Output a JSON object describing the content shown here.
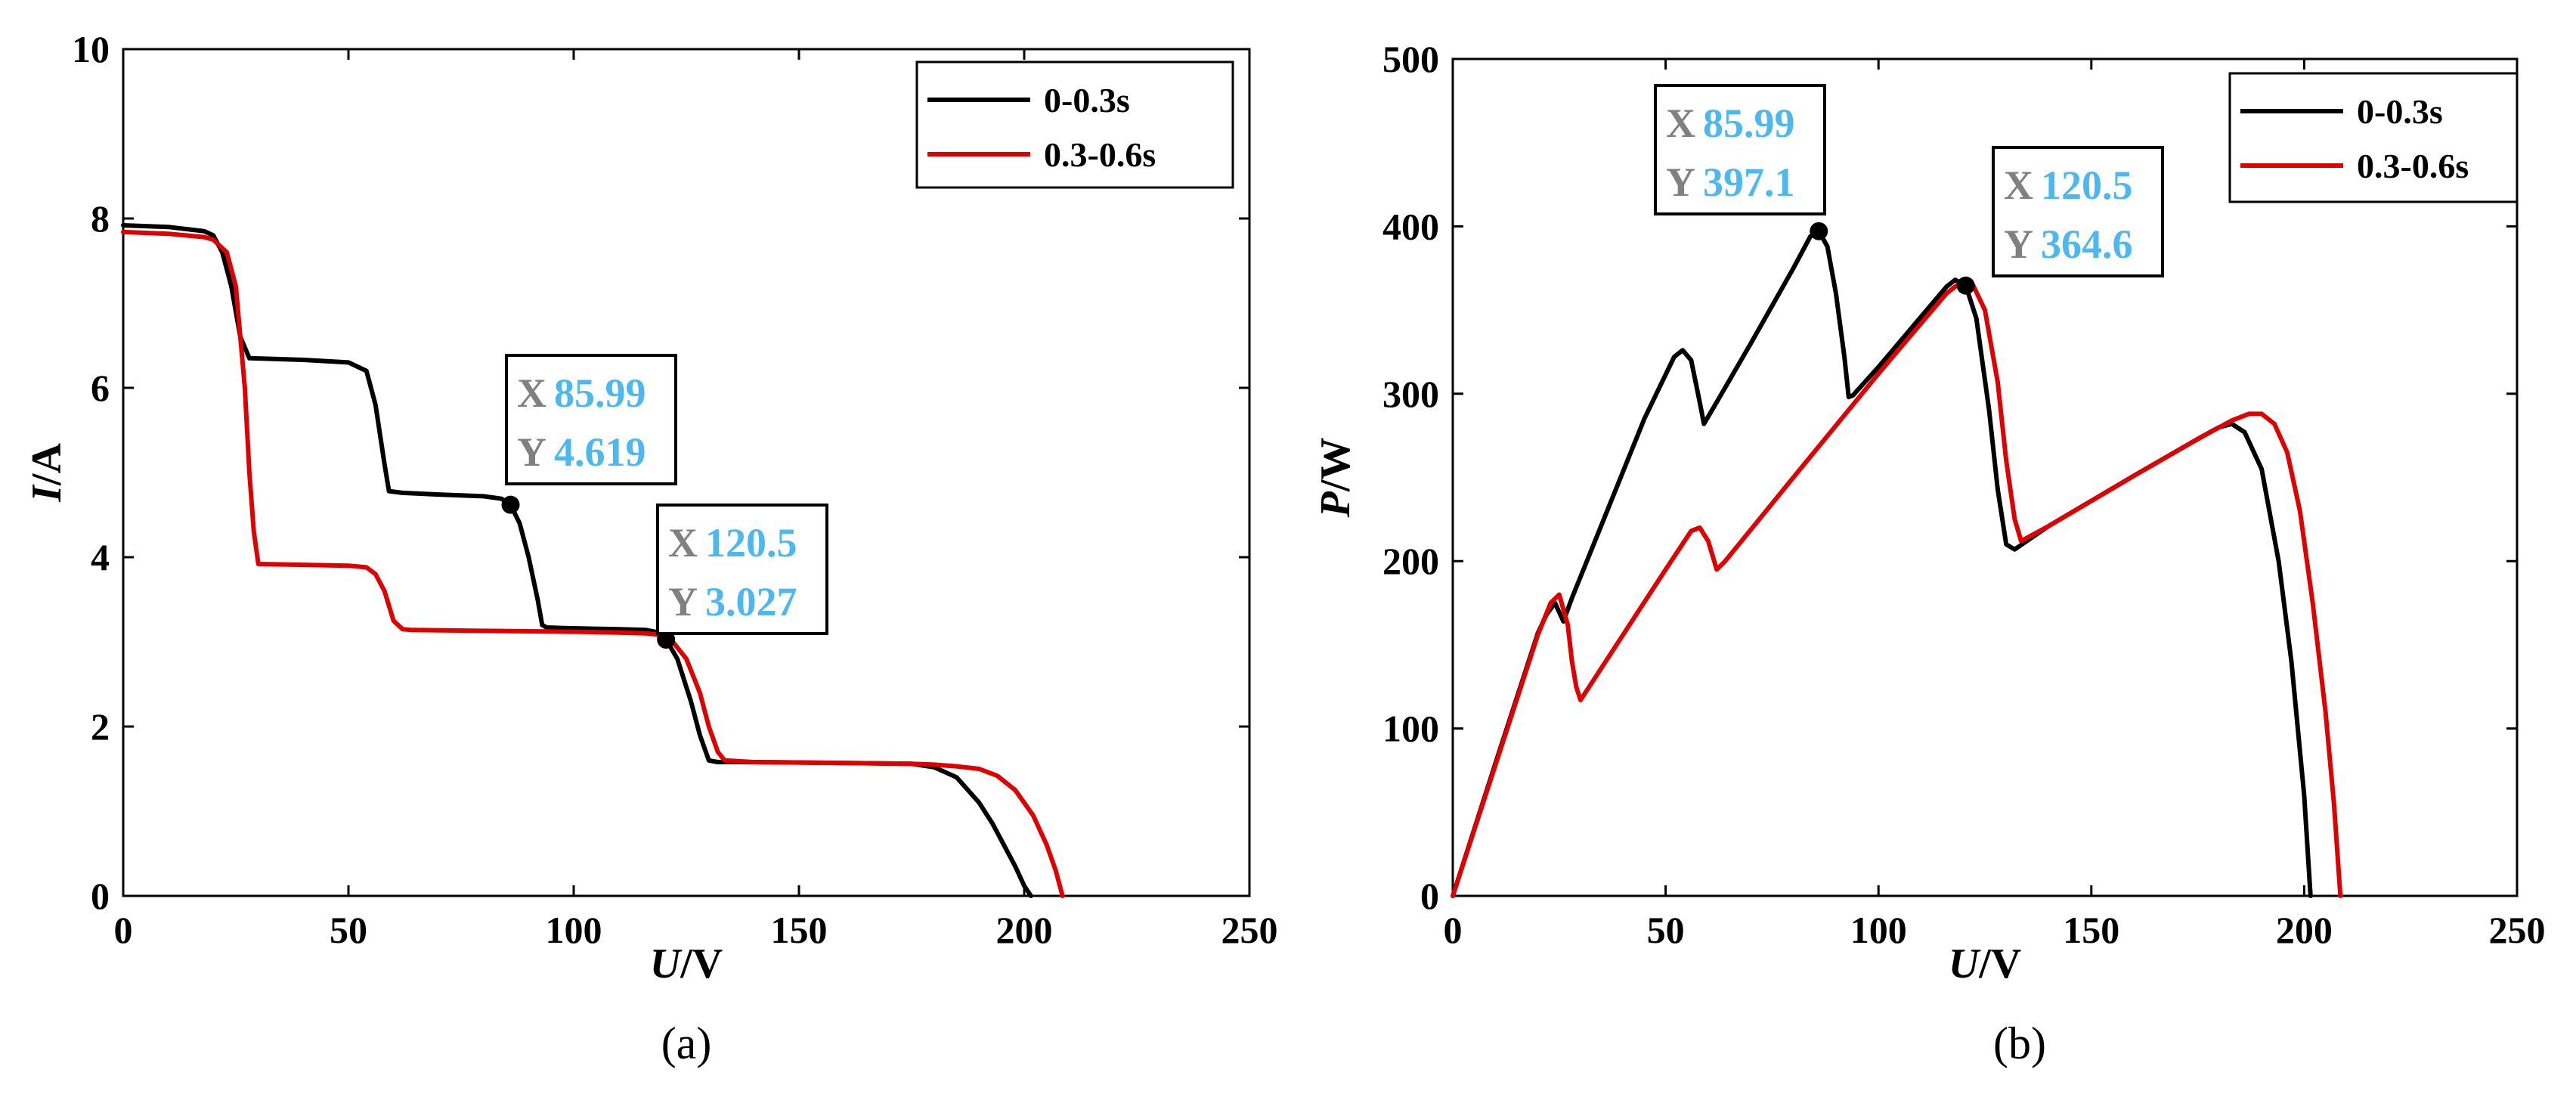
{
  "chart_data": [
    {
      "id": "a",
      "type": "line",
      "caption": "(a)",
      "xlabel": {
        "italic": "U",
        "rest": "/V"
      },
      "ylabel": {
        "italic": "I",
        "rest": "/A"
      },
      "xlim": [
        0,
        250
      ],
      "ylim": [
        0,
        10
      ],
      "xticks": [
        0,
        50,
        100,
        150,
        200,
        250
      ],
      "yticks": [
        0,
        2,
        4,
        6,
        8,
        10
      ],
      "legend_position": "top-right",
      "grid": false,
      "series": [
        {
          "name": "0-0.3s",
          "color": "#000000",
          "x": [
            0,
            10,
            18,
            20,
            22,
            24,
            26,
            28,
            40,
            50,
            54,
            56,
            58,
            59,
            62,
            70,
            80,
            84,
            85.99,
            88,
            90,
            92,
            93,
            94,
            100,
            110,
            116,
            118,
            120.5,
            123,
            126,
            128,
            130,
            132,
            140,
            160,
            175,
            180,
            185,
            190,
            193,
            196,
            198,
            200,
            201.5
          ],
          "y": [
            7.92,
            7.9,
            7.85,
            7.8,
            7.6,
            7.2,
            6.6,
            6.35,
            6.33,
            6.3,
            6.2,
            5.8,
            5.1,
            4.78,
            4.76,
            4.74,
            4.72,
            4.69,
            4.619,
            4.4,
            4.0,
            3.5,
            3.2,
            3.17,
            3.16,
            3.15,
            3.14,
            3.12,
            3.027,
            2.8,
            2.3,
            1.9,
            1.6,
            1.58,
            1.58,
            1.57,
            1.56,
            1.52,
            1.4,
            1.1,
            0.85,
            0.55,
            0.35,
            0.12,
            0.0
          ]
        },
        {
          "name": "0.3-0.6s",
          "color": "#e00000",
          "x": [
            0,
            10,
            18,
            20,
            23,
            25,
            27,
            28,
            29,
            30,
            40,
            50,
            54,
            56,
            58,
            60,
            62,
            64,
            80,
            100,
            110,
            116,
            118,
            120,
            122,
            125,
            128,
            130,
            132,
            133.5,
            140,
            160,
            175,
            180,
            185,
            190,
            194,
            198,
            202,
            205,
            207,
            208.5
          ],
          "y": [
            7.84,
            7.82,
            7.78,
            7.75,
            7.6,
            7.2,
            6.0,
            5.0,
            4.3,
            3.92,
            3.91,
            3.9,
            3.88,
            3.8,
            3.6,
            3.25,
            3.15,
            3.14,
            3.13,
            3.12,
            3.11,
            3.1,
            3.09,
            3.06,
            3.0,
            2.8,
            2.4,
            2.0,
            1.7,
            1.6,
            1.58,
            1.57,
            1.56,
            1.55,
            1.53,
            1.5,
            1.42,
            1.25,
            0.95,
            0.6,
            0.3,
            0.0
          ]
        }
      ],
      "annotations": [
        {
          "x": 85.99,
          "y": 4.619,
          "x_label": "X",
          "y_label": "Y",
          "x_text": "85.99",
          "y_text": "4.619"
        },
        {
          "x": 120.5,
          "y": 3.027,
          "x_label": "X",
          "y_label": "Y",
          "x_text": "120.5",
          "y_text": "3.027"
        }
      ]
    },
    {
      "id": "b",
      "type": "line",
      "caption": "(b)",
      "xlabel": {
        "italic": "U",
        "rest": "/V"
      },
      "ylabel": {
        "italic": "P",
        "rest": "/W"
      },
      "xlim": [
        0,
        250
      ],
      "ylim": [
        0,
        500
      ],
      "xticks": [
        0,
        50,
        100,
        150,
        200,
        250
      ],
      "yticks": [
        0,
        100,
        200,
        300,
        400,
        500
      ],
      "legend_position": "top-right",
      "grid": false,
      "series": [
        {
          "name": "0-0.3s",
          "color": "#000000",
          "x": [
            0,
            10,
            20,
            22,
            24,
            26,
            28,
            35,
            45,
            52,
            54,
            56,
            58,
            59,
            62,
            70,
            80,
            84,
            85.99,
            88,
            90,
            92,
            93,
            94,
            100,
            110,
            116,
            118,
            120.5,
            123,
            126,
            128,
            130,
            132,
            140,
            160,
            175,
            180,
            183,
            186,
            190,
            194,
            197,
            200,
            201.5
          ],
          "y": [
            0,
            79,
            157,
            168,
            175,
            164,
            178,
            222,
            285,
            322,
            326,
            320,
            295,
            282,
            295,
            330,
            375,
            394,
            397.1,
            388,
            360,
            322,
            298,
            299,
            316,
            346,
            364,
            368,
            364.6,
            345,
            290,
            243,
            210,
            207,
            221,
            251,
            273,
            280,
            282,
            277,
            255,
            200,
            140,
            60,
            0
          ]
        },
        {
          "name": "0.3-0.6s",
          "color": "#e00000",
          "x": [
            0,
            10,
            20,
            23,
            25,
            27,
            28,
            29,
            30,
            40,
            50,
            56,
            58,
            60,
            62,
            64,
            80,
            100,
            110,
            116,
            118,
            120,
            122,
            125,
            128,
            130,
            132,
            133.5,
            140,
            160,
            175,
            183,
            187,
            190,
            193,
            196,
            199,
            202,
            205,
            207,
            208.5
          ],
          "y": [
            0,
            78,
            156,
            175,
            180,
            162,
            140,
            125,
            117,
            156,
            195,
            218,
            220,
            212,
            195,
            200,
            250,
            312,
            342,
            360,
            364,
            367,
            366,
            350,
            307,
            260,
            225,
            212,
            221,
            251,
            273,
            284,
            288,
            288,
            282,
            265,
            230,
            175,
            110,
            55,
            0
          ]
        }
      ],
      "annotations": [
        {
          "x": 85.99,
          "y": 397.1,
          "x_label": "X",
          "y_label": "Y",
          "x_text": "85.99",
          "y_text": "397.1"
        },
        {
          "x": 120.5,
          "y": 364.6,
          "x_label": "X",
          "y_label": "Y",
          "x_text": "120.5",
          "y_text": "364.6"
        }
      ]
    }
  ]
}
